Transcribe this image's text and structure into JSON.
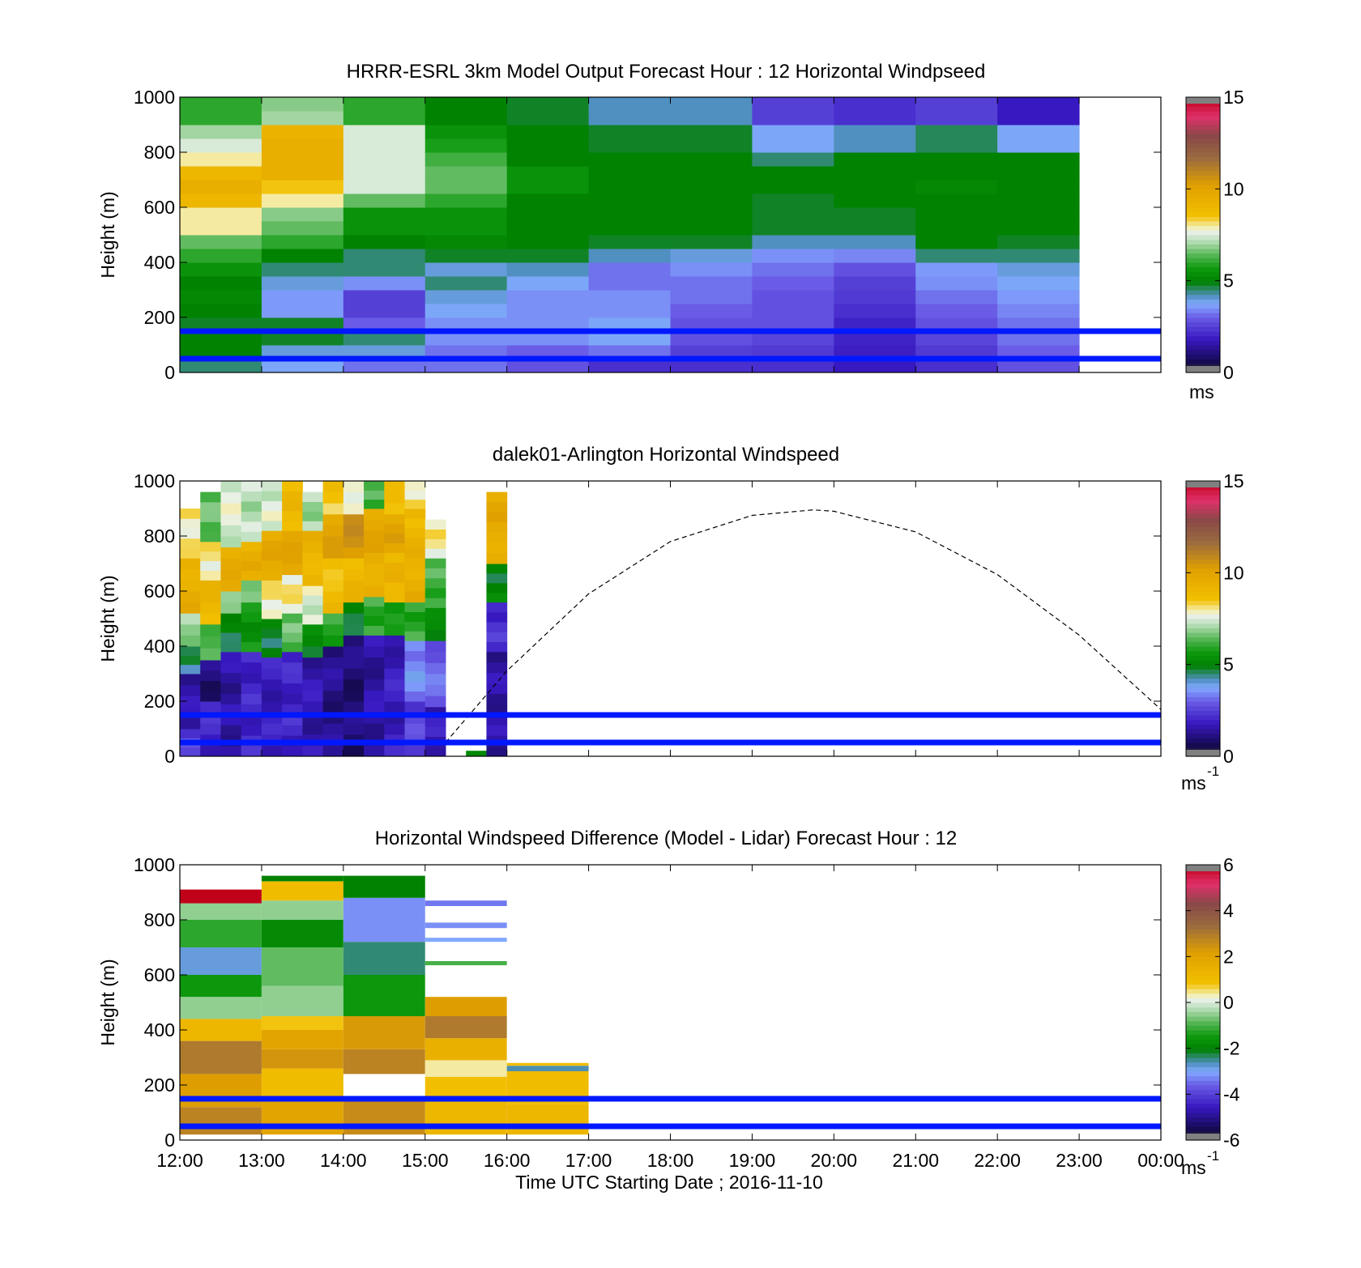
{
  "shared": {
    "height_ticks": [
      "0",
      "200",
      "400",
      "600",
      "800",
      "1000"
    ],
    "time_ticks": [
      "12:00",
      "13:00",
      "14:00",
      "15:00",
      "16:00",
      "17:00",
      "18:00",
      "19:00",
      "20:00",
      "21:00",
      "22:00",
      "23:00",
      "00:00"
    ],
    "xlabel": "Time UTC  Starting Date ; 2016-11-10",
    "ylabel": "Height (m)",
    "reference_lines_m": [
      50,
      150
    ],
    "reference_line_color": "#0018ff"
  },
  "chart_data": [
    {
      "type": "heatmap",
      "title": "HRRR-ESRL 3km Model Output   Forecast Hour : 12 Horizontal Windpseed",
      "ylabel": "Height (m)",
      "ylim": [
        0,
        1000
      ],
      "xlim": [
        "12:00",
        "00:00"
      ],
      "colorbar": {
        "min": 0,
        "max": 15,
        "ticks": [
          "0",
          "5",
          "10",
          "15"
        ],
        "unit": "ms"
      },
      "rows_m": [
        25,
        75,
        125,
        175,
        225,
        275,
        325,
        375,
        425,
        475,
        525,
        575,
        625,
        675,
        725,
        775,
        825,
        875,
        925,
        975
      ],
      "columns": [
        {
          "time": "12:00",
          "values": [
            4.5,
            5.0,
            5.0,
            4.8,
            5.0,
            5.2,
            5.0,
            5.5,
            6.0,
            6.5,
            8.0,
            8.0,
            9.0,
            9.5,
            9.0,
            8.0,
            7.5,
            7.0,
            6.0,
            6.0
          ]
        },
        {
          "time": "13:00",
          "values": [
            3.8,
            4.0,
            4.8,
            4.8,
            3.6,
            3.6,
            4.0,
            4.5,
            5.0,
            6.0,
            6.5,
            6.8,
            8.0,
            8.5,
            9.5,
            9.5,
            9.5,
            9.2,
            7.0,
            6.8
          ]
        },
        {
          "time": "14:00",
          "values": [
            3.2,
            4.0,
            4.5,
            3.0,
            2.5,
            2.5,
            3.5,
            4.5,
            4.5,
            5.0,
            5.5,
            5.5,
            6.5,
            7.5,
            7.5,
            7.5,
            7.5,
            7.5,
            6.0,
            6.0
          ]
        },
        {
          "time": "15:00",
          "values": [
            3.2,
            3.2,
            3.5,
            3.5,
            3.8,
            4.0,
            4.5,
            4.0,
            4.8,
            5.2,
            5.5,
            5.5,
            6.0,
            6.5,
            6.5,
            6.2,
            5.8,
            5.5,
            5.0,
            5.0
          ]
        },
        {
          "time": "16:00",
          "values": [
            2.8,
            3.0,
            3.5,
            3.5,
            3.5,
            3.5,
            3.8,
            4.2,
            4.8,
            5.0,
            5.0,
            5.0,
            5.0,
            5.5,
            5.5,
            5.0,
            5.0,
            5.0,
            4.8,
            4.8
          ]
        },
        {
          "time": "17:00",
          "values": [
            2.2,
            3.2,
            3.8,
            3.8,
            3.5,
            3.5,
            3.2,
            3.2,
            4.2,
            4.8,
            5.0,
            5.0,
            5.0,
            5.0,
            5.0,
            5.0,
            4.8,
            4.8,
            4.2,
            4.2
          ]
        },
        {
          "time": "18:00",
          "values": [
            2.2,
            2.5,
            2.8,
            2.8,
            3.0,
            3.2,
            3.2,
            3.5,
            4.0,
            4.8,
            5.0,
            5.0,
            5.0,
            5.0,
            5.0,
            5.0,
            4.8,
            4.8,
            4.2,
            4.2
          ]
        },
        {
          "time": "19:00",
          "values": [
            2.2,
            2.4,
            2.6,
            2.8,
            2.8,
            2.8,
            3.0,
            3.2,
            3.5,
            4.2,
            4.8,
            4.8,
            4.8,
            5.0,
            5.0,
            4.5,
            3.8,
            3.8,
            2.5,
            2.5
          ]
        },
        {
          "time": "20:00",
          "values": [
            1.8,
            1.9,
            2.0,
            2.0,
            2.2,
            2.4,
            2.5,
            2.8,
            3.4,
            4.2,
            4.8,
            4.8,
            5.0,
            5.0,
            5.0,
            5.0,
            4.2,
            4.2,
            2.2,
            2.2
          ]
        },
        {
          "time": "21:00",
          "values": [
            2.2,
            2.4,
            2.6,
            2.8,
            3.0,
            3.2,
            3.5,
            3.6,
            4.5,
            5.0,
            5.0,
            5.0,
            5.0,
            5.2,
            5.0,
            5.0,
            4.6,
            4.6,
            2.5,
            2.5
          ]
        },
        {
          "time": "22:00",
          "values": [
            2.8,
            3.0,
            3.2,
            3.2,
            3.4,
            3.6,
            3.8,
            4.0,
            4.5,
            4.8,
            5.0,
            5.0,
            5.0,
            5.0,
            5.0,
            5.0,
            3.8,
            3.8,
            1.8,
            1.8
          ]
        }
      ]
    },
    {
      "type": "heatmap",
      "title": "dalek01-Arlington  Horizontal Windspeed",
      "ylabel": "Height (m)",
      "ylim": [
        0,
        1000
      ],
      "xlim": [
        "12:00",
        "00:00"
      ],
      "colorbar": {
        "min": 0,
        "max": 15,
        "ticks": [
          "0",
          "5",
          "10",
          "15"
        ],
        "unit": "ms",
        "unit_exponent": "-1"
      },
      "profile_time_step_h": 0.25,
      "profiles": [
        {
          "time": "12:00",
          "top_m": 960,
          "bands": [
            [
              0,
              100,
              2.5
            ],
            [
              100,
              300,
              1.5
            ],
            [
              300,
              400,
              4.5
            ],
            [
              400,
              520,
              7.0
            ],
            [
              520,
              720,
              9.5
            ],
            [
              720,
              900,
              8.0
            ]
          ]
        },
        {
          "time": "12:15",
          "top_m": 960,
          "bands": [
            [
              0,
              200,
              2.0
            ],
            [
              200,
              350,
              1.0
            ],
            [
              350,
              480,
              6.5
            ],
            [
              480,
              640,
              9.0
            ],
            [
              640,
              780,
              8.0
            ],
            [
              780,
              960,
              6.5
            ]
          ]
        },
        {
          "time": "12:30",
          "top_m": 1000,
          "bands": [
            [
              0,
              380,
              1.5
            ],
            [
              380,
              520,
              4.8
            ],
            [
              520,
              600,
              7.2
            ],
            [
              600,
              760,
              9.5
            ],
            [
              760,
              1000,
              7.5
            ]
          ]
        },
        {
          "time": "12:45",
          "top_m": 1000,
          "bands": [
            [
              0,
              380,
              2.0
            ],
            [
              380,
              560,
              5.5
            ],
            [
              560,
              640,
              7.0
            ],
            [
              640,
              780,
              9.5
            ],
            [
              780,
              1000,
              7.2
            ]
          ]
        },
        {
          "time": "13:00",
          "top_m": 1000,
          "bands": [
            [
              0,
              360,
              1.8
            ],
            [
              360,
              500,
              4.8
            ],
            [
              500,
              640,
              8.0
            ],
            [
              640,
              820,
              9.8
            ],
            [
              820,
              1000,
              7.5
            ]
          ]
        },
        {
          "time": "13:15",
          "top_m": 1000,
          "bands": [
            [
              0,
              380,
              2.0
            ],
            [
              380,
              520,
              6.5
            ],
            [
              520,
              660,
              8.0
            ],
            [
              660,
              820,
              9.8
            ],
            [
              820,
              1000,
              9.0
            ]
          ]
        },
        {
          "time": "13:30",
          "top_m": 960,
          "bands": [
            [
              0,
              360,
              1.6
            ],
            [
              360,
              480,
              5.0
            ],
            [
              480,
              620,
              7.5
            ],
            [
              620,
              820,
              9.2
            ],
            [
              820,
              960,
              7.0
            ]
          ]
        },
        {
          "time": "13:45",
          "top_m": 1000,
          "bands": [
            [
              0,
              400,
              1.2
            ],
            [
              400,
              520,
              6.0
            ],
            [
              520,
              720,
              8.8
            ],
            [
              720,
              880,
              10.0
            ],
            [
              880,
              1000,
              8.5
            ]
          ]
        },
        {
          "time": "14:00",
          "top_m": 1000,
          "bands": [
            [
              0,
              440,
              1.0
            ],
            [
              440,
              560,
              5.0
            ],
            [
              560,
              720,
              9.0
            ],
            [
              720,
              880,
              10.5
            ],
            [
              880,
              1000,
              8.0
            ]
          ]
        },
        {
          "time": "14:15",
          "top_m": 1000,
          "bands": [
            [
              0,
              440,
              1.5
            ],
            [
              440,
              580,
              6.0
            ],
            [
              580,
              740,
              9.5
            ],
            [
              740,
              900,
              9.8
            ],
            [
              900,
              1000,
              6.2
            ]
          ]
        },
        {
          "time": "14:30",
          "top_m": 1000,
          "bands": [
            [
              0,
              440,
              1.8
            ],
            [
              440,
              560,
              5.5
            ],
            [
              560,
              740,
              9.2
            ],
            [
              740,
              880,
              10.0
            ],
            [
              880,
              1000,
              8.5
            ]
          ]
        },
        {
          "time": "14:45",
          "top_m": 1000,
          "bands": [
            [
              0,
              200,
              2.5
            ],
            [
              200,
              420,
              3.5
            ],
            [
              420,
              560,
              6.0
            ],
            [
              560,
              760,
              9.5
            ],
            [
              760,
              900,
              9.0
            ],
            [
              900,
              1000,
              8.0
            ]
          ]
        },
        {
          "time": "15:00",
          "top_m": 860,
          "bands": [
            [
              0,
              180,
              1.8
            ],
            [
              180,
              420,
              3.0
            ],
            [
              420,
              540,
              5.0
            ],
            [
              540,
              720,
              6.2
            ],
            [
              720,
              860,
              8.0
            ]
          ]
        },
        {
          "time": "15:30",
          "top_m": 20,
          "bands": [
            [
              0,
              20,
              5.0
            ]
          ]
        },
        {
          "time": "15:45",
          "top_m": 960,
          "bands": [
            [
              0,
              380,
              1.5
            ],
            [
              380,
              560,
              2.2
            ],
            [
              560,
              700,
              5.0
            ],
            [
              700,
              780,
              9.2
            ],
            [
              780,
              960,
              9.8
            ]
          ]
        }
      ],
      "sun_elevation_curve": [
        {
          "time": "15:15",
          "height_m": 50
        },
        {
          "time": "16:00",
          "height_m": 310
        },
        {
          "time": "17:00",
          "height_m": 590
        },
        {
          "time": "18:00",
          "height_m": 780
        },
        {
          "time": "19:00",
          "height_m": 875
        },
        {
          "time": "19:45",
          "height_m": 895
        },
        {
          "time": "20:00",
          "height_m": 890
        },
        {
          "time": "21:00",
          "height_m": 815
        },
        {
          "time": "22:00",
          "height_m": 660
        },
        {
          "time": "23:00",
          "height_m": 440
        },
        {
          "time": "00:00",
          "height_m": 170
        }
      ]
    },
    {
      "type": "heatmap",
      "title": "Horizontal Windspeed Difference (Model - Lidar) Forecast Hour : 12",
      "ylabel": "Height (m)",
      "xlabel": "Time UTC  Starting Date ; 2016-11-10",
      "ylim": [
        0,
        1000
      ],
      "xlim": [
        "12:00",
        "00:00"
      ],
      "colorbar": {
        "min": -6,
        "max": 6,
        "ticks": [
          "-6",
          "-4",
          "-2",
          "0",
          "2",
          "4",
          "6"
        ],
        "unit": "ms",
        "unit_exponent": "-1"
      },
      "columns": [
        {
          "start": "12:00",
          "end": "13:00",
          "bands": [
            [
              20,
              120,
              2.8
            ],
            [
              120,
              240,
              2.2
            ],
            [
              240,
              360,
              3.0
            ],
            [
              360,
              440,
              1.2
            ],
            [
              440,
              520,
              -0.5
            ],
            [
              520,
              600,
              -1.5
            ],
            [
              600,
              700,
              -2.8
            ],
            [
              700,
              800,
              -1.2
            ],
            [
              800,
              860,
              -0.5
            ],
            [
              860,
              910,
              6.0
            ]
          ]
        },
        {
          "start": "13:00",
          "end": "14:00",
          "bands": [
            [
              20,
              150,
              2.0
            ],
            [
              150,
              260,
              1.0
            ],
            [
              260,
              330,
              2.4
            ],
            [
              330,
              400,
              2.0
            ],
            [
              400,
              450,
              0.8
            ],
            [
              450,
              560,
              -0.5
            ],
            [
              560,
              700,
              -0.8
            ],
            [
              700,
              800,
              -1.8
            ],
            [
              800,
              870,
              -0.5
            ],
            [
              870,
              940,
              1.0
            ],
            [
              940,
              960,
              -2.0
            ]
          ]
        },
        {
          "start": "14:00",
          "end": "15:00",
          "bands": [
            [
              20,
              140,
              2.6
            ],
            [
              240,
              330,
              2.8
            ],
            [
              330,
              450,
              2.3
            ],
            [
              450,
              600,
              -1.5
            ],
            [
              600,
              720,
              -2.4
            ],
            [
              720,
              880,
              -3.2
            ],
            [
              880,
              960,
              -2.0
            ]
          ]
        },
        {
          "start": "15:00",
          "end": "16:00",
          "bands": [
            [
              20,
              140,
              1.2
            ],
            [
              140,
              230,
              0.9
            ],
            [
              230,
              290,
              0.4
            ],
            [
              290,
              370,
              1.5
            ],
            [
              370,
              450,
              3.0
            ],
            [
              450,
              520,
              2.2
            ],
            [
              635,
              650,
              -1.0
            ],
            [
              720,
              735,
              -3.0
            ],
            [
              770,
              790,
              -3.2
            ],
            [
              850,
              870,
              -3.4
            ]
          ]
        },
        {
          "start": "16:00",
          "end": "17:00",
          "bands": [
            [
              20,
              130,
              1.2
            ],
            [
              130,
              250,
              1.0
            ],
            [
              250,
              270,
              -2.6
            ],
            [
              270,
              280,
              1.0
            ]
          ]
        }
      ]
    }
  ]
}
